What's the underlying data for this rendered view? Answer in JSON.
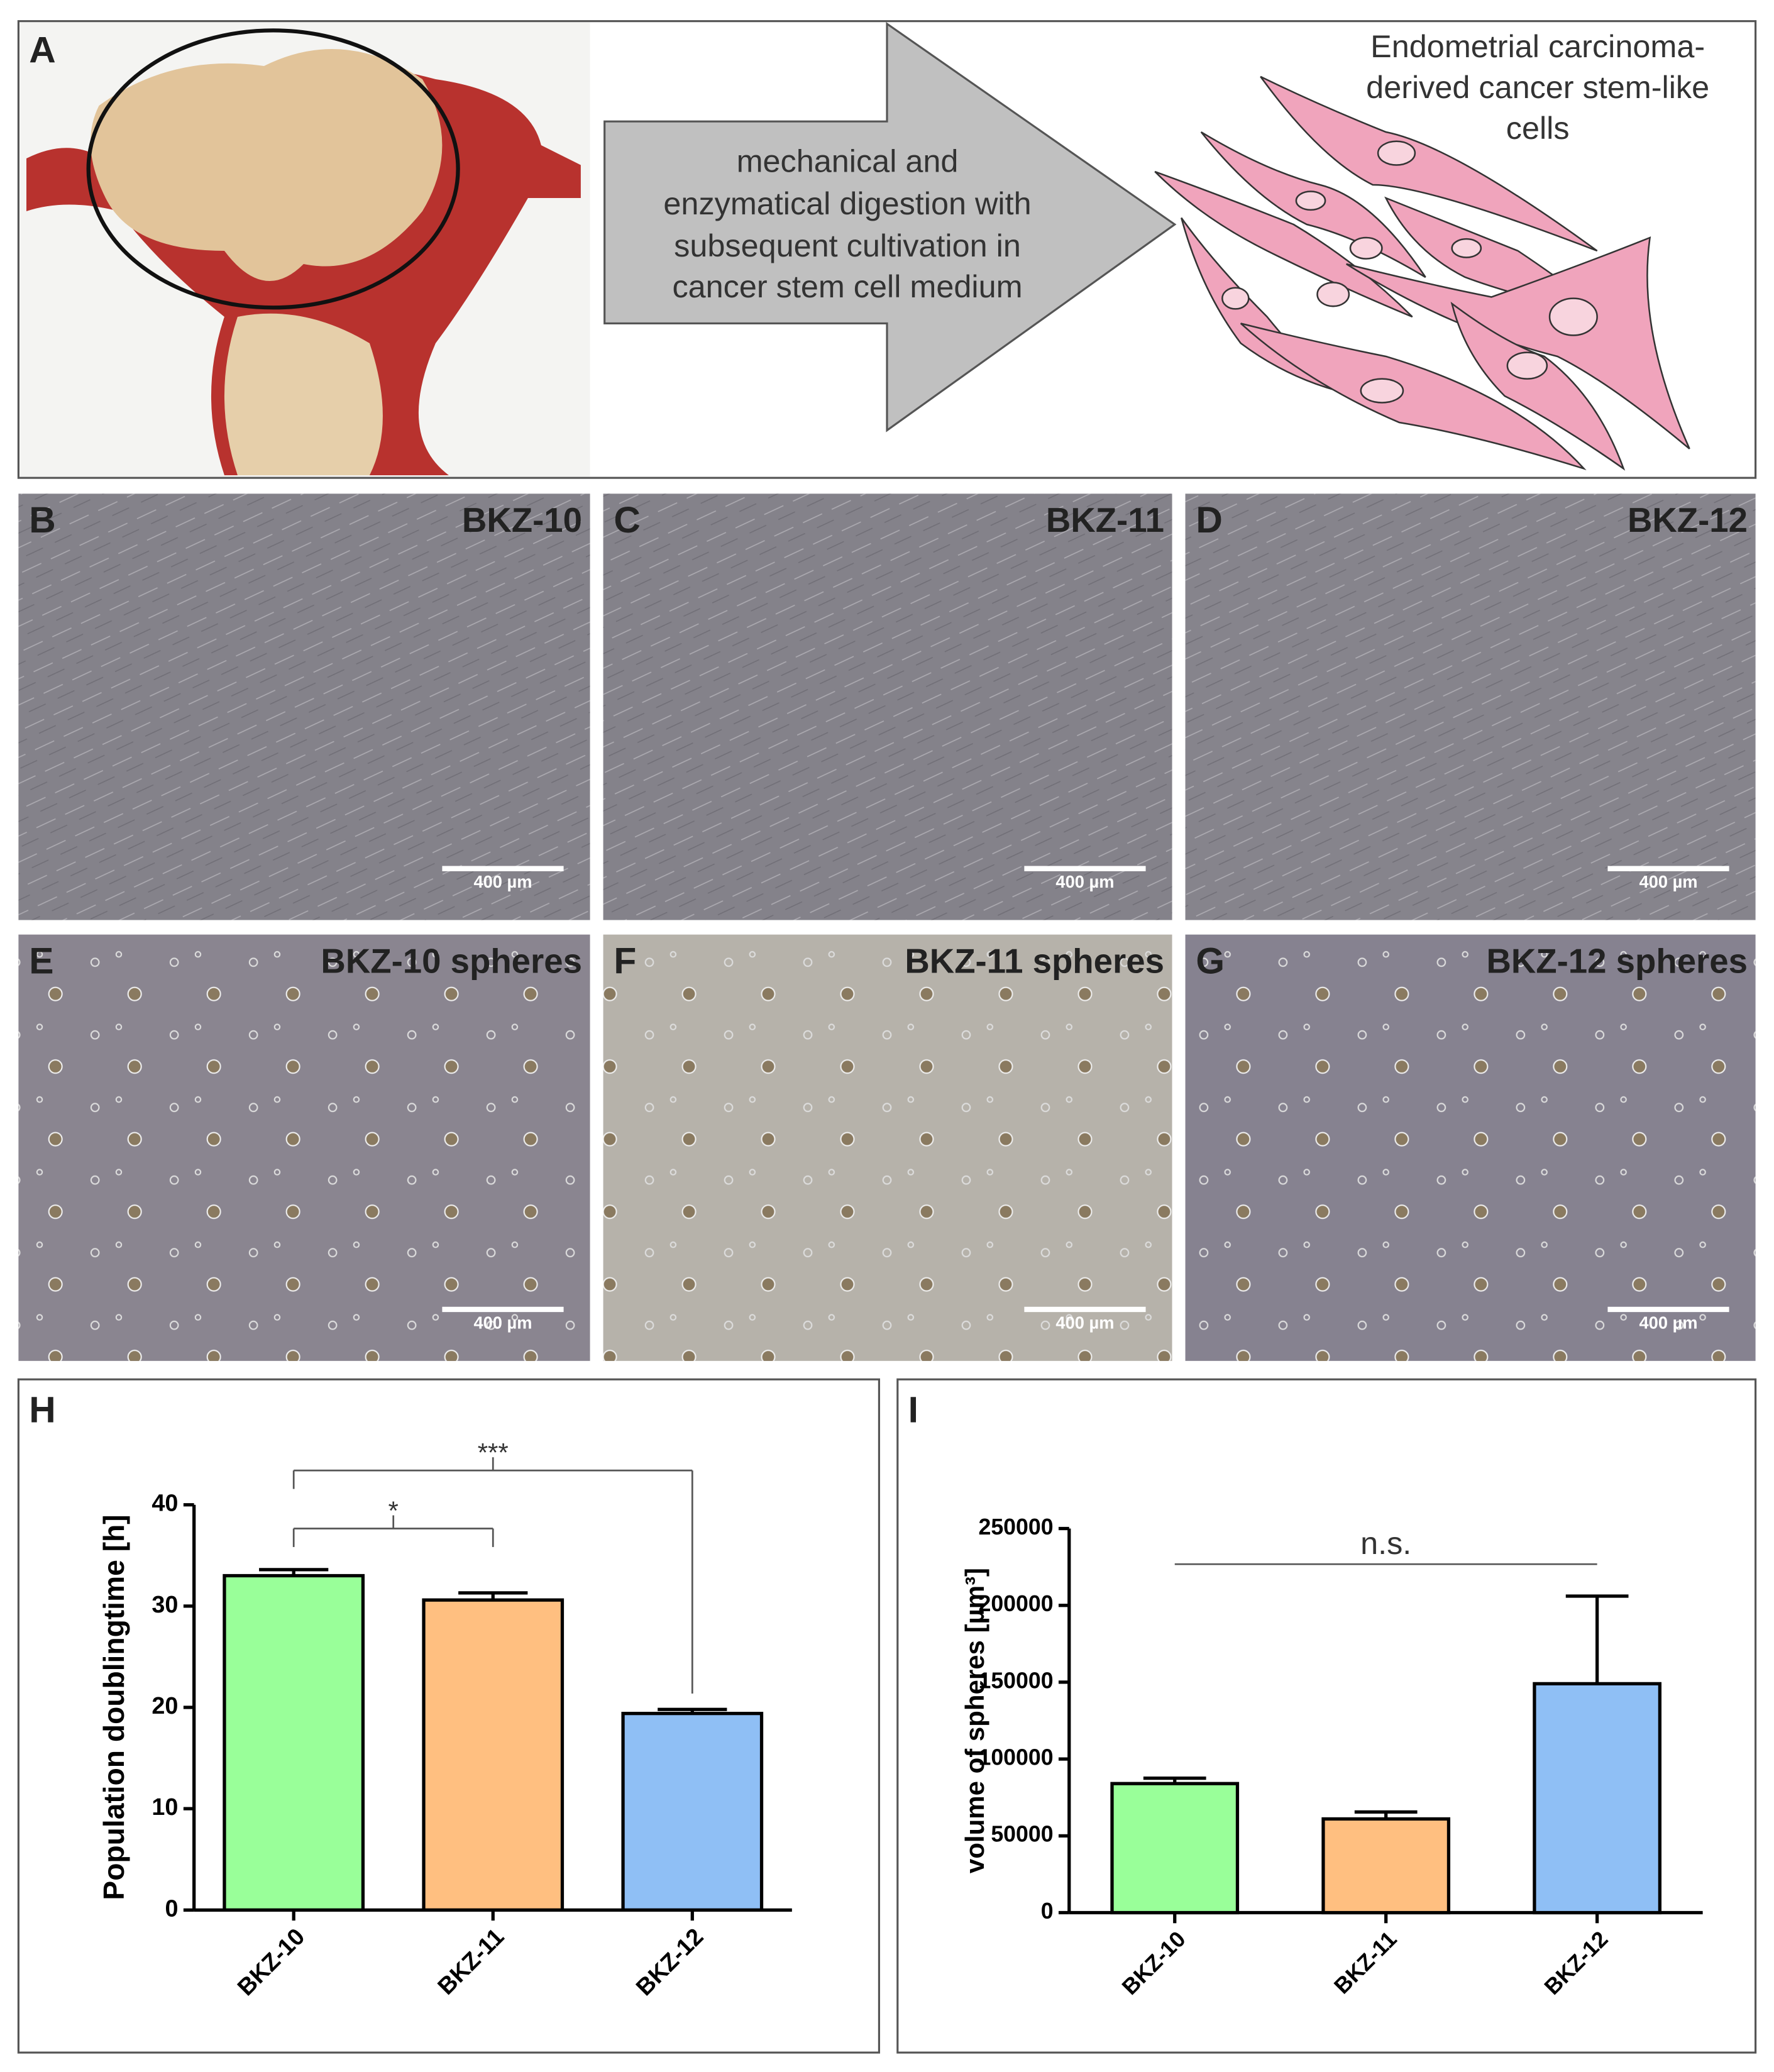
{
  "panel_a": {
    "label": "A",
    "arrow_text": [
      "mechanical and",
      "enzymatical digestion with",
      "subsequent cultivation in",
      "cancer stem cell medium"
    ],
    "cells_label": [
      "Endometrial carcinoma-",
      "derived cancer stem-like",
      "cells"
    ]
  },
  "micrographs": [
    {
      "label": "B",
      "title": "BKZ-10",
      "scale_bar": "400 µm"
    },
    {
      "label": "C",
      "title": "BKZ-11",
      "scale_bar": "400 µm"
    },
    {
      "label": "D",
      "title": "BKZ-12",
      "scale_bar": "400 µm"
    },
    {
      "label": "E",
      "title": "BKZ-10 spheres",
      "scale_bar": "400 µm"
    },
    {
      "label": "F",
      "title": "BKZ-11 spheres",
      "scale_bar": "400 µm"
    },
    {
      "label": "G",
      "title": "BKZ-12 spheres",
      "scale_bar": "400 µm"
    }
  ],
  "chart_data": [
    {
      "type": "bar",
      "panel": "H",
      "y_label": "Population doublingtime [h]",
      "categories": [
        "BKZ-10",
        "BKZ-11",
        "BKZ-12"
      ],
      "values": [
        33,
        30.6,
        19.4
      ],
      "errors": [
        0.6,
        0.7,
        0.4
      ],
      "colors": [
        "#99ff99",
        "#ffbf80",
        "#8fbff5"
      ],
      "ylim": [
        0,
        40
      ],
      "yticks": [
        0,
        10,
        20,
        30,
        40
      ],
      "significance": [
        {
          "label": "*",
          "between": [
            "BKZ-10",
            "BKZ-11"
          ]
        },
        {
          "label": "***",
          "between": [
            "BKZ-10",
            "BKZ-12"
          ]
        }
      ]
    },
    {
      "type": "bar",
      "panel": "I",
      "y_label": "volume of spheres [µm³]",
      "categories": [
        "BKZ-10",
        "BKZ-11",
        "BKZ-12"
      ],
      "values": [
        84000,
        61000,
        149000
      ],
      "errors": [
        3500,
        4500,
        57000
      ],
      "colors": [
        "#99ff99",
        "#ffbf80",
        "#8fbff5"
      ],
      "ylim": [
        0,
        250000
      ],
      "yticks": [
        0,
        50000,
        100000,
        150000,
        200000,
        250000
      ],
      "significance": [
        {
          "label": "n.s.",
          "between": [
            "BKZ-10",
            "BKZ-12"
          ]
        }
      ]
    }
  ]
}
